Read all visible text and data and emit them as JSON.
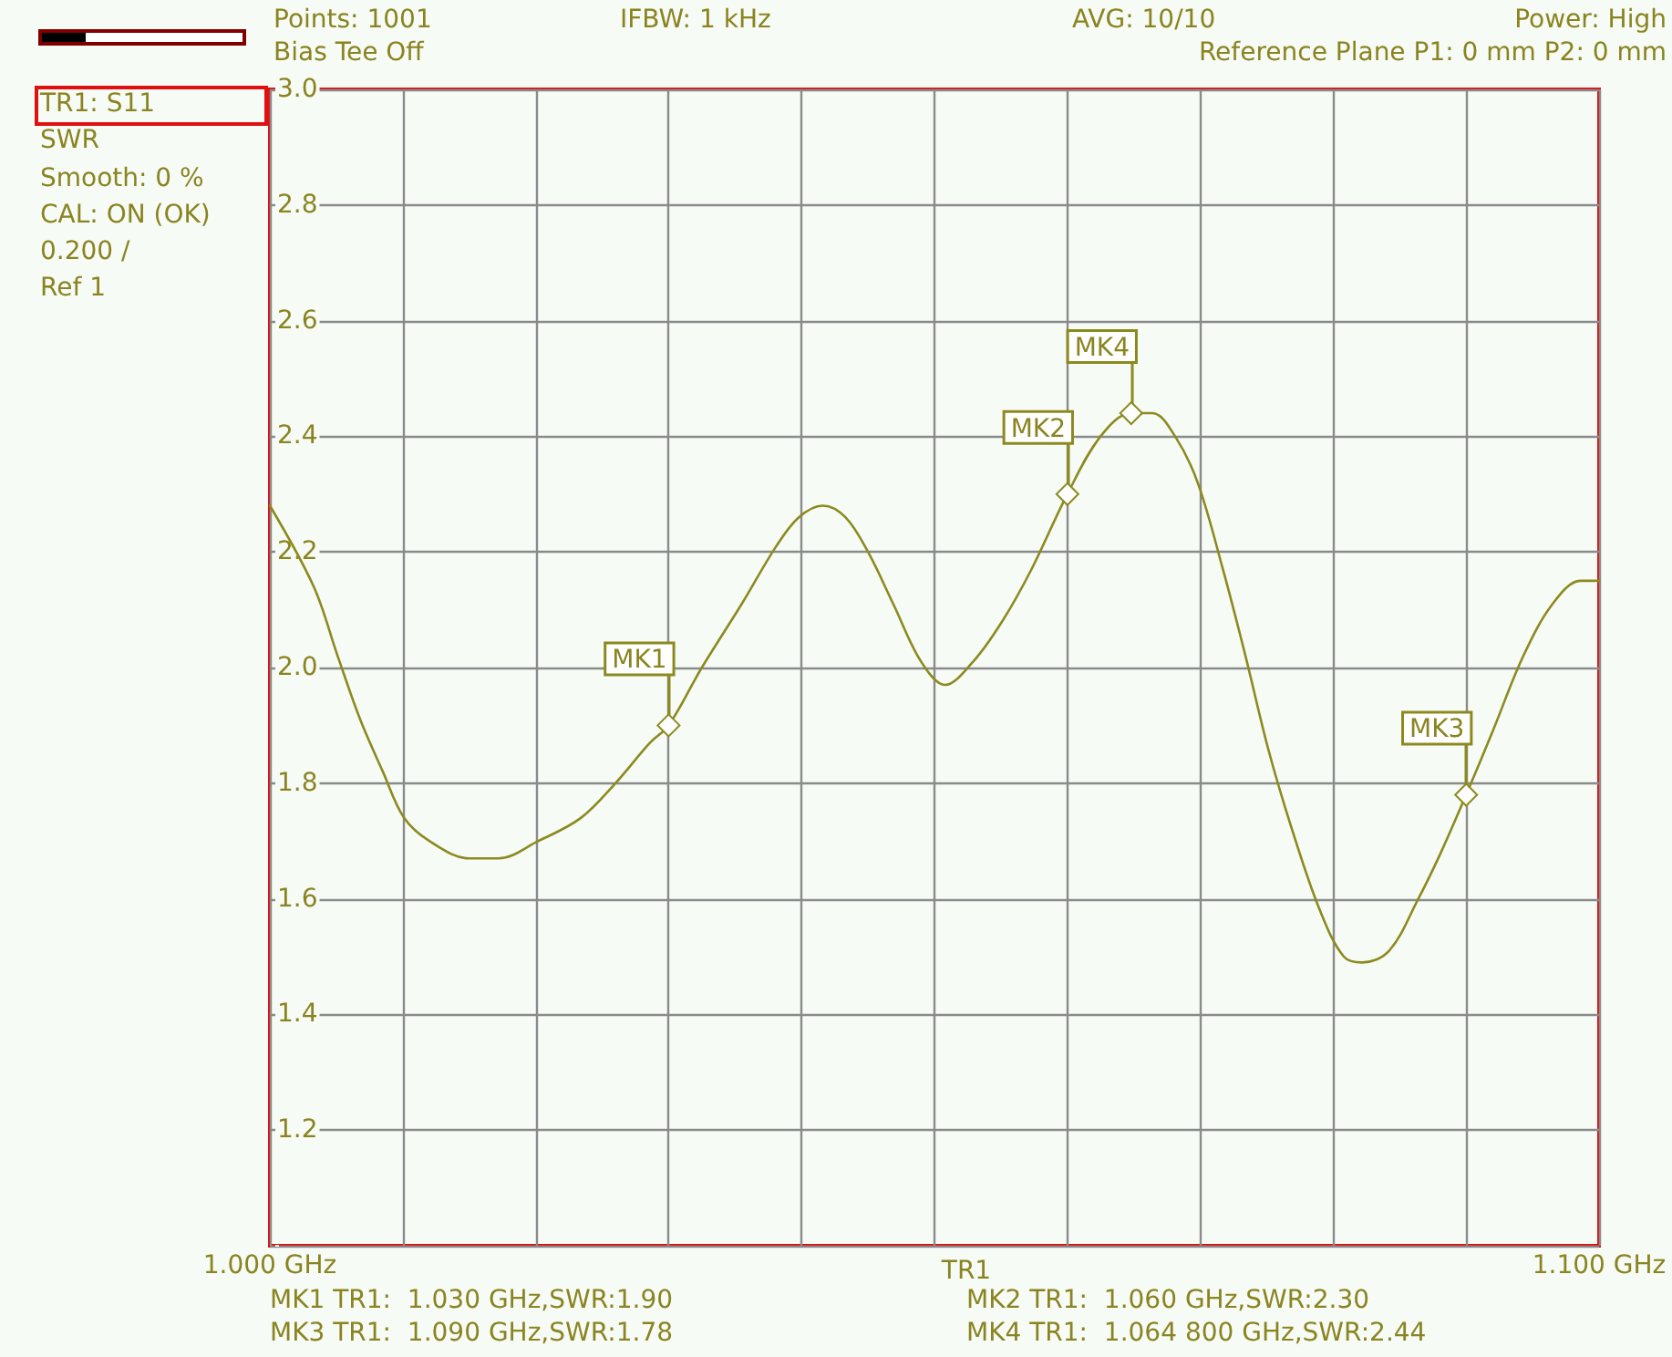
{
  "chart_data": {
    "type": "line",
    "title": "TR1: S11",
    "ylabel": "SWR",
    "x": [
      1.0,
      1.0033,
      1.0051,
      1.0068,
      1.0085,
      1.0101,
      1.012,
      1.015,
      1.0172,
      1.0202,
      1.0234,
      1.026,
      1.0286,
      1.03,
      1.0325,
      1.0355,
      1.0381,
      1.0398,
      1.0416,
      1.0433,
      1.045,
      1.0469,
      1.049,
      1.0508,
      1.0529,
      1.0551,
      1.0573,
      1.06,
      1.0625,
      1.0648,
      1.0664,
      1.0681,
      1.0698,
      1.0717,
      1.0734,
      1.0751,
      1.0769,
      1.079,
      1.0808,
      1.0822,
      1.0842,
      1.0864,
      1.0881,
      1.09,
      1.092,
      1.0943,
      1.0965,
      1.0986,
      1.1
    ],
    "series": [
      {
        "color": "#8c8a1e",
        "values": [
          2.28,
          2.14,
          2.02,
          1.91,
          1.82,
          1.74,
          1.7,
          1.67,
          1.67,
          1.7,
          1.74,
          1.8,
          1.87,
          1.9,
          2.0,
          2.11,
          2.21,
          2.26,
          2.28,
          2.26,
          2.2,
          2.11,
          2.01,
          1.97,
          2.01,
          2.08,
          2.17,
          2.3,
          2.4,
          2.44,
          2.44,
          2.4,
          2.32,
          2.17,
          2.02,
          1.86,
          1.72,
          1.58,
          1.5,
          1.49,
          1.51,
          1.6,
          1.68,
          1.78,
          1.89,
          2.02,
          2.11,
          2.15,
          2.15
        ]
      }
    ],
    "xlim": [
      1.0,
      1.1
    ],
    "xticks": [
      {
        "value": 1.0,
        "label": "1.000 GHz"
      },
      {
        "value": 1.01,
        "label": null
      },
      {
        "value": 1.02,
        "label": null
      },
      {
        "value": 1.03,
        "label": null
      },
      {
        "value": 1.04,
        "label": null
      },
      {
        "value": 1.05,
        "label": null
      },
      {
        "value": 1.06,
        "label": null
      },
      {
        "value": 1.07,
        "label": null
      },
      {
        "value": 1.08,
        "label": null
      },
      {
        "value": 1.09,
        "label": null
      },
      {
        "value": 1.1,
        "label": "1.100 GHz"
      }
    ],
    "ylim": [
      1.0,
      3.0
    ],
    "yticks": [
      {
        "value": 1.0,
        "label": null
      },
      {
        "value": 1.2,
        "label": "1.2"
      },
      {
        "value": 1.4,
        "label": "1.4"
      },
      {
        "value": 1.6,
        "label": "1.6"
      },
      {
        "value": 1.8,
        "label": "1.8"
      },
      {
        "value": 2.0,
        "label": "2.0"
      },
      {
        "value": 2.2,
        "label": "2.2"
      },
      {
        "value": 2.4,
        "label": "2.4"
      },
      {
        "value": 2.6,
        "label": "2.6"
      },
      {
        "value": 2.8,
        "label": "2.8"
      },
      {
        "value": 3.0,
        "label": "3.0"
      }
    ],
    "grid": true,
    "marker": "none",
    "line_style": "solid",
    "annotations": [
      "Points: 1001",
      "IFBW: 1 kHz",
      "AVG: 10/10",
      "Power: High",
      "Bias Tee Off",
      "Reference Plane P1: 0 mm P2: 0 mm",
      "Smooth: 0 %",
      "CAL: ON (OK)",
      "0.200 /",
      "Ref 1",
      "TR1",
      "MK1 TR1:  1.030 GHz,SWR:1.90",
      "MK2 TR1:  1.060 GHz,SWR:2.30",
      "MK3 TR1:  1.090 GHz,SWR:1.78",
      "MK4 TR1:  1.064 800 GHz,SWR:2.44",
      {
        "text": "MK1",
        "x": 1.03,
        "y": 1.9
      },
      {
        "text": "MK2",
        "x": 1.06,
        "y": 2.3
      },
      {
        "text": "MK3",
        "x": 1.09,
        "y": 1.78
      },
      {
        "text": "MK4",
        "x": 1.0648,
        "y": 2.44
      }
    ]
  }
}
